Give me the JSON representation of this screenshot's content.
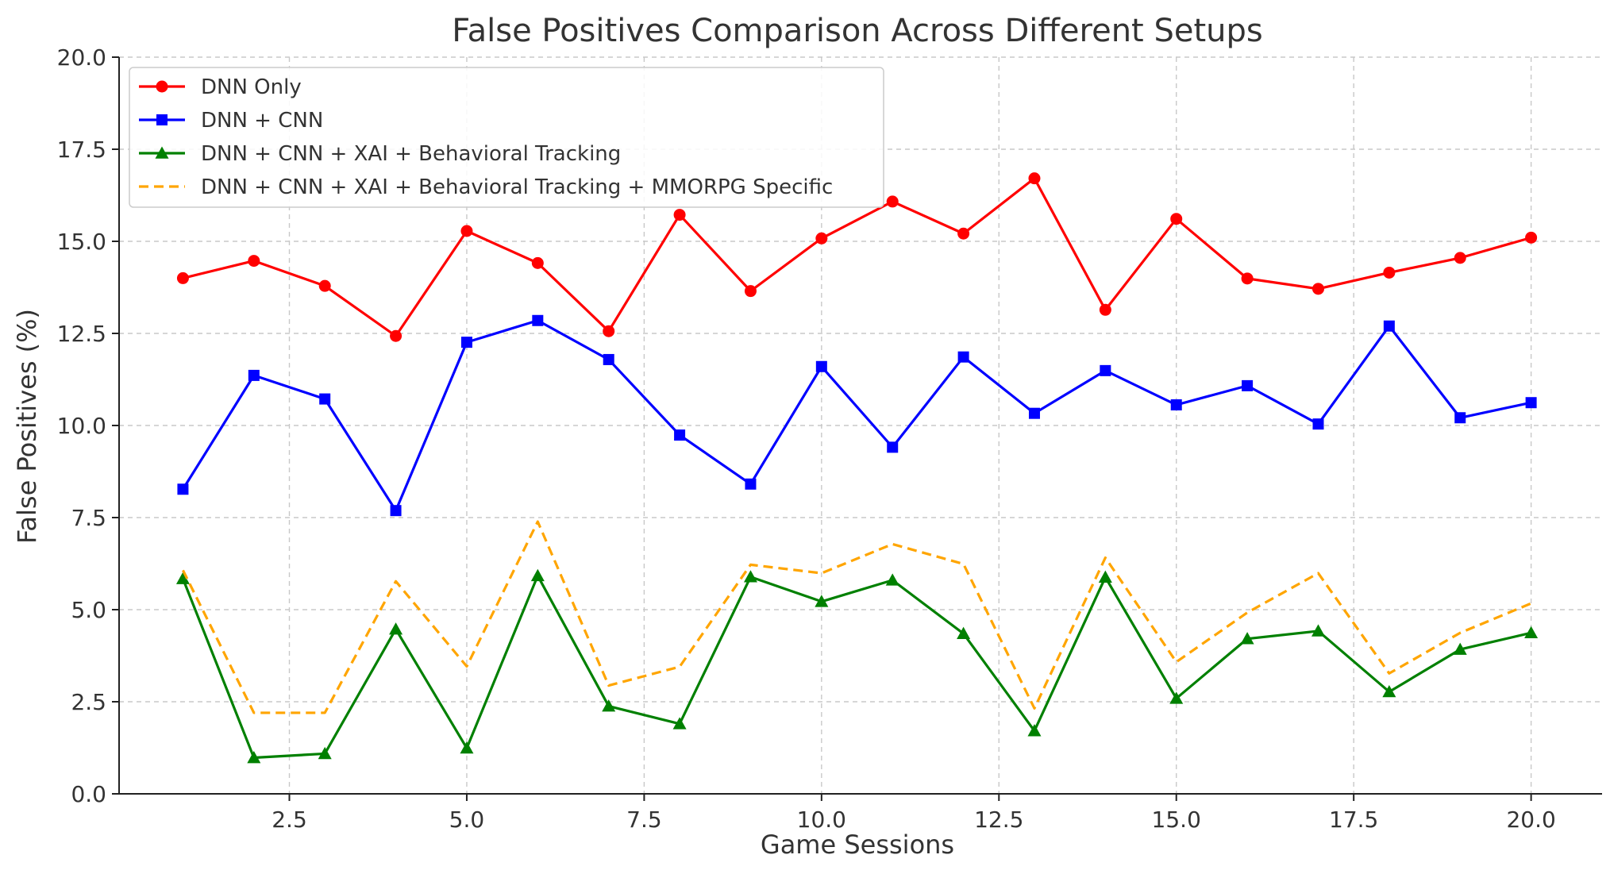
{
  "chart_data": {
    "type": "line",
    "title": "False Positives Comparison Across Different Setups",
    "xlabel": "Game Sessions",
    "ylabel": "False Positives (%)",
    "xlim": [
      0.1,
      21.0
    ],
    "ylim": [
      0,
      20
    ],
    "xticks": [
      2.5,
      5.0,
      7.5,
      10.0,
      12.5,
      15.0,
      17.5,
      20.0
    ],
    "xtick_labels": [
      "2.5",
      "5.0",
      "7.5",
      "10.0",
      "12.5",
      "15.0",
      "17.5",
      "20.0"
    ],
    "yticks": [
      0,
      2.5,
      5,
      7.5,
      10,
      12.5,
      15,
      17.5,
      20
    ],
    "ytick_labels": [
      "0.0",
      "2.5",
      "5.0",
      "7.5",
      "10.0",
      "12.5",
      "15.0",
      "17.5",
      "20.0"
    ],
    "grid": true,
    "legend_position": "top-left",
    "x": [
      1,
      2,
      3,
      4,
      5,
      6,
      7,
      8,
      9,
      10,
      11,
      12,
      13,
      14,
      15,
      16,
      17,
      18,
      19,
      20
    ],
    "series": [
      {
        "name": "DNN Only",
        "color": "#ff0000",
        "marker": "circle",
        "line_style": "solid",
        "values": [
          14.0,
          14.47,
          13.79,
          12.43,
          15.28,
          14.41,
          12.56,
          15.72,
          13.65,
          15.08,
          16.08,
          15.21,
          16.71,
          13.14,
          15.61,
          13.99,
          13.71,
          14.15,
          14.55,
          15.1
        ]
      },
      {
        "name": "DNN + CNN",
        "color": "#0000ff",
        "marker": "square",
        "line_style": "solid",
        "values": [
          8.27,
          11.36,
          10.72,
          7.69,
          12.26,
          12.85,
          11.79,
          9.74,
          8.41,
          11.6,
          9.41,
          11.86,
          10.33,
          11.49,
          10.56,
          11.08,
          10.04,
          12.7,
          10.21,
          10.62
        ]
      },
      {
        "name": "DNN + CNN + XAI + Behavioral Tracking",
        "color": "#008000",
        "marker": "triangle",
        "line_style": "solid",
        "values": [
          5.84,
          0.98,
          1.09,
          4.47,
          1.24,
          5.92,
          2.38,
          1.9,
          5.89,
          5.22,
          5.8,
          4.35,
          1.71,
          5.88,
          2.59,
          4.21,
          4.42,
          2.77,
          3.92,
          4.37
        ]
      },
      {
        "name": "DNN + CNN + XAI + Behavioral Tracking + MMORPG Specific",
        "color": "#ffa500",
        "marker": "none",
        "line_style": "dashed",
        "values": [
          6.07,
          2.2,
          2.2,
          5.77,
          3.46,
          7.39,
          2.94,
          3.45,
          6.22,
          5.99,
          6.78,
          6.24,
          2.32,
          6.41,
          3.58,
          4.92,
          5.99,
          3.27,
          4.37,
          5.17
        ]
      }
    ]
  }
}
